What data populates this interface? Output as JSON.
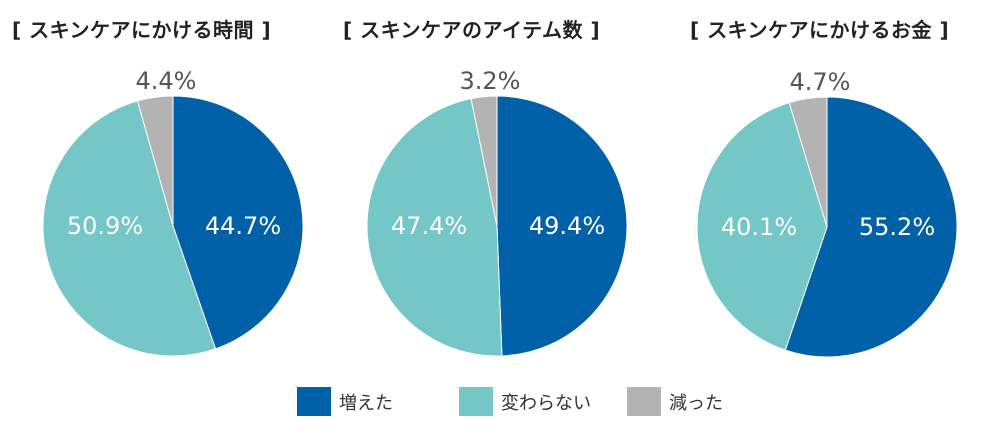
{
  "chart_data": [
    {
      "type": "pie",
      "title": "[ スキンケアにかける時間 ]",
      "slices": [
        {
          "label": "増えた",
          "value": 44.7,
          "text": "44.7%"
        },
        {
          "label": "変わらない",
          "value": 50.9,
          "text": "50.9%"
        },
        {
          "label": "減った",
          "value": 4.4,
          "text": "4.4%"
        }
      ]
    },
    {
      "type": "pie",
      "title": "[ スキンケアのアイテム数 ]",
      "slices": [
        {
          "label": "増えた",
          "value": 49.4,
          "text": "49.4%"
        },
        {
          "label": "変わらない",
          "value": 47.4,
          "text": "47.4%"
        },
        {
          "label": "減った",
          "value": 3.2,
          "text": "3.2%"
        }
      ]
    },
    {
      "type": "pie",
      "title": "[ スキンケアにかけるお金 ]",
      "slices": [
        {
          "label": "増えた",
          "value": 55.2,
          "text": "55.2%"
        },
        {
          "label": "変わらない",
          "value": 40.1,
          "text": "40.1%"
        },
        {
          "label": "減った",
          "value": 4.7,
          "text": "4.7%"
        }
      ]
    }
  ],
  "legend": [
    {
      "label": "増えた",
      "color": "#0060a8"
    },
    {
      "label": "変わらない",
      "color": "#74c6c7"
    },
    {
      "label": "減った",
      "color": "#b3b3b3"
    }
  ]
}
